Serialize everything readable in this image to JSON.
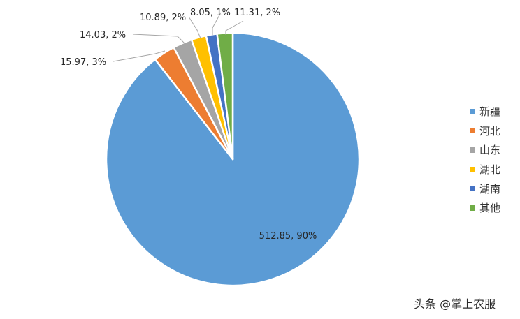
{
  "chart_data": {
    "type": "pie",
    "slices": [
      {
        "name": "新疆",
        "value": 512.85,
        "label": "512.85, 90%",
        "color": "#5b9bd5"
      },
      {
        "name": "河北",
        "value": 15.97,
        "label": "15.97, 3%",
        "color": "#ed7d31"
      },
      {
        "name": "山东",
        "value": 14.03,
        "label": "14.03, 2%",
        "color": "#a5a5a5"
      },
      {
        "name": "湖北",
        "value": 10.89,
        "label": "10.89, 2%",
        "color": "#ffc000"
      },
      {
        "name": "湖南",
        "value": 8.05,
        "label": "8.05, 1%",
        "color": "#4472c4"
      },
      {
        "name": "其他",
        "value": 11.31,
        "label": "11.31, 2%",
        "color": "#70ad47"
      }
    ],
    "legend_position": "right"
  },
  "watermark": "头条 @掌上农服"
}
